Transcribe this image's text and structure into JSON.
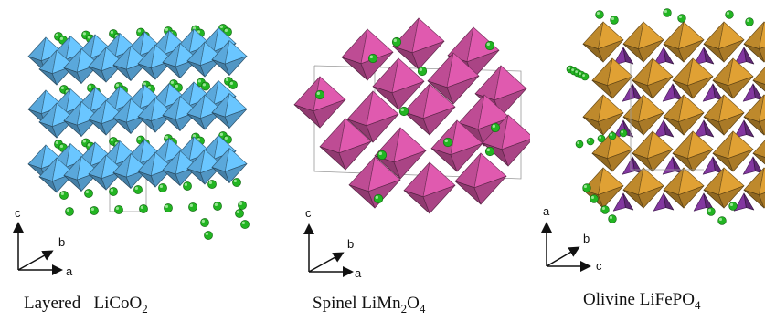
{
  "panels": [
    {
      "name": "layered",
      "structure": "Layered",
      "formula_parts": [
        [
          "LiCoO",
          ""
        ],
        [
          "2",
          "sub"
        ]
      ],
      "axes": {
        "up": "c",
        "diag": "b",
        "right": "a"
      },
      "colors": {
        "polyhedra": "#5fb1e6",
        "atoms": "#22b522"
      }
    },
    {
      "name": "spinel",
      "structure": "Spinel",
      "formula_parts": [
        [
          "LiMn",
          ""
        ],
        [
          "2",
          "sub"
        ],
        [
          "O",
          ""
        ],
        [
          "4",
          "sub"
        ]
      ],
      "axes": {
        "up": "c",
        "diag": "b",
        "right": "a"
      },
      "colors": {
        "polyhedra": "#c8509c",
        "atoms": "#22b522"
      }
    },
    {
      "name": "olivine",
      "structure": "Olivine",
      "formula_parts": [
        [
          "LiFePO",
          ""
        ],
        [
          "4",
          "sub"
        ]
      ],
      "axes": {
        "up": "a",
        "diag": "b",
        "right": "c"
      },
      "colors": {
        "polyhedra": "#c8902e",
        "secondary": "#8a3aa8",
        "atoms": "#22b522"
      }
    }
  ]
}
